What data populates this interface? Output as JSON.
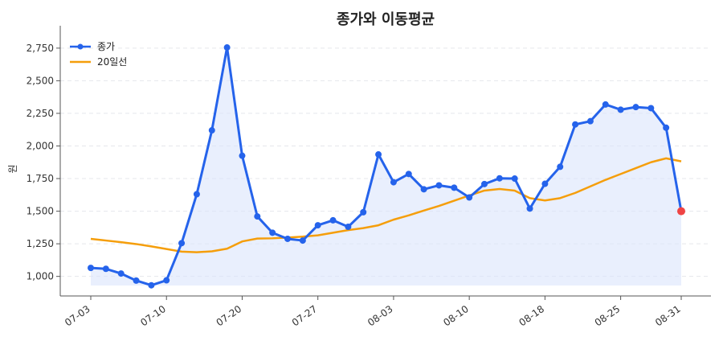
{
  "colors": {
    "close": "#2563eb",
    "ma": "#f59e0b",
    "last_point": "#ef4444",
    "fill": "#dbe4fb",
    "grid": "#e5e7eb",
    "axis": "#555555"
  },
  "chart_data": {
    "type": "line",
    "title": "종가와 이동평균",
    "xlabel": "",
    "ylabel": "원",
    "ylim": [
      850,
      2860
    ],
    "yticks": [
      1000,
      1250,
      1500,
      1750,
      2000,
      2250,
      2500,
      2750
    ],
    "ytick_labels": [
      "1,000",
      "1,250",
      "1,500",
      "1,750",
      "2,000",
      "2,250",
      "2,500",
      "2,750"
    ],
    "xtick_labels": [
      "07-03",
      "07-10",
      "07-20",
      "07-27",
      "08-03",
      "08-10",
      "08-18",
      "08-25",
      "08-31"
    ],
    "xtick_index": [
      0,
      5,
      10,
      15,
      20,
      25,
      30,
      35,
      39
    ],
    "grid": true,
    "legend_position": "top-left",
    "series": [
      {
        "name": "종가",
        "values": [
          1065,
          1058,
          1022,
          968,
          932,
          970,
          1255,
          1630,
          2120,
          2755,
          1925,
          1460,
          1335,
          1288,
          1275,
          1392,
          1430,
          1380,
          1492,
          1935,
          1722,
          1785,
          1668,
          1698,
          1680,
          1605,
          1708,
          1752,
          1750,
          1520,
          1710,
          1840,
          2165,
          2190,
          2318,
          2278,
          2298,
          2290,
          2140,
          1500
        ]
      },
      {
        "name": "20일선",
        "values": [
          1288,
          1275,
          1262,
          1248,
          1230,
          1210,
          1190,
          1185,
          1192,
          1212,
          1268,
          1290,
          1292,
          1298,
          1305,
          1315,
          1335,
          1355,
          1370,
          1392,
          1435,
          1468,
          1505,
          1540,
          1580,
          1620,
          1658,
          1670,
          1658,
          1600,
          1582,
          1600,
          1640,
          1690,
          1740,
          1785,
          1830,
          1875,
          1905,
          1882
        ]
      }
    ]
  }
}
